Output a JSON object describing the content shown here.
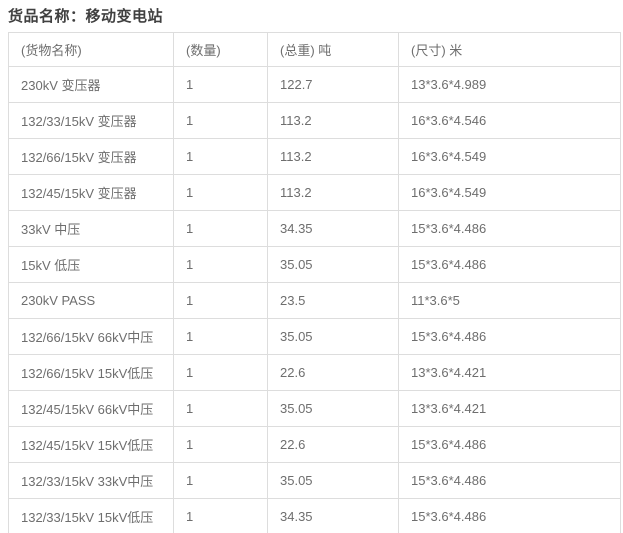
{
  "page": {
    "title": "货品名称：移动变电站"
  },
  "table": {
    "columns": [
      {
        "label": "(货物名称)"
      },
      {
        "label": "(数量)"
      },
      {
        "label": "(总重) 吨"
      },
      {
        "label": "(尺寸) 米"
      }
    ],
    "rows": [
      {
        "name": "230kV 变压器",
        "qty": "1",
        "weight": "122.7",
        "size": "13*3.6*4.989"
      },
      {
        "name": "132/33/15kV 变压器",
        "qty": "1",
        "weight": "113.2",
        "size": "16*3.6*4.546"
      },
      {
        "name": "132/66/15kV 变压器",
        "qty": "1",
        "weight": "113.2",
        "size": "16*3.6*4.549"
      },
      {
        "name": "132/45/15kV 变压器",
        "qty": "1",
        "weight": "113.2",
        "size": "16*3.6*4.549"
      },
      {
        "name": "33kV 中压",
        "qty": "1",
        "weight": "34.35",
        "size": "15*3.6*4.486"
      },
      {
        "name": "15kV 低压",
        "qty": "1",
        "weight": "35.05",
        "size": "15*3.6*4.486"
      },
      {
        "name": "230kV PASS",
        "qty": "1",
        "weight": "23.5",
        "size": "11*3.6*5"
      },
      {
        "name": "132/66/15kV 66kV中压",
        "qty": "1",
        "weight": "35.05",
        "size": "15*3.6*4.486"
      },
      {
        "name": "132/66/15kV 15kV低压",
        "qty": "1",
        "weight": "22.6",
        "size": "13*3.6*4.421"
      },
      {
        "name": "132/45/15kV 66kV中压",
        "qty": "1",
        "weight": "35.05",
        "size": "13*3.6*4.421"
      },
      {
        "name": "132/45/15kV 15kV低压",
        "qty": "1",
        "weight": "22.6",
        "size": "15*3.6*4.486"
      },
      {
        "name": "132/33/15kV 33kV中压",
        "qty": "1",
        "weight": "35.05",
        "size": "15*3.6*4.486"
      },
      {
        "name": "132/33/15kV 15kV低压",
        "qty": "1",
        "weight": "34.35",
        "size": "15*3.6*4.486"
      }
    ]
  },
  "colors": {
    "title_text": "#404040",
    "cell_text": "#6e6e6e",
    "border": "#dddddd",
    "background": "#ffffff"
  }
}
